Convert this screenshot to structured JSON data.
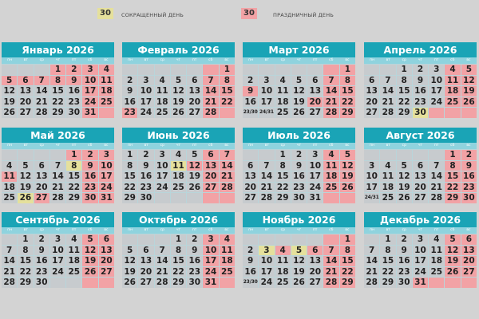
{
  "legend": {
    "short": {
      "sample": "30",
      "label": "СОКРАЩЕННЫЙ ДЕНЬ",
      "color": "#e5e09c"
    },
    "holiday": {
      "sample": "30",
      "label": "ПРАЗДНИЧНЫЙ ДЕНЬ",
      "color": "#f2a2a5"
    }
  },
  "weekdays": [
    "пн",
    "вт",
    "ср",
    "чт",
    "пт",
    "сб",
    "вс"
  ],
  "colors": {
    "header": "#1aa4b6",
    "weekday_row": "#8fd3de",
    "day": "#c7cbce",
    "holiday": "#f2a2a5",
    "short": "#e5e09c"
  },
  "marks_legend": {
    ".": "workday",
    "h": "holiday",
    "s": "short"
  },
  "months": [
    {
      "title": "Январь 2026",
      "weeks": [
        [
          "",
          "",
          "",
          "1",
          "2",
          "3",
          "4"
        ],
        [
          "5",
          "6",
          "7",
          "8",
          "9",
          "10",
          "11"
        ],
        [
          "12",
          "13",
          "14",
          "15",
          "16",
          "17",
          "18"
        ],
        [
          "19",
          "20",
          "21",
          "22",
          "23",
          "24",
          "25"
        ],
        [
          "26",
          "27",
          "28",
          "29",
          "30",
          "31",
          ""
        ]
      ],
      "marks": [
        "...hhhh",
        "hhhhhhh",
        ".....hh",
        ".....hh",
        ".....hh"
      ]
    },
    {
      "title": "Февраль 2026",
      "weeks": [
        [
          "",
          "",
          "",
          "",
          "",
          "",
          "1"
        ],
        [
          "2",
          "3",
          "4",
          "5",
          "6",
          "7",
          "8"
        ],
        [
          "9",
          "10",
          "11",
          "12",
          "13",
          "14",
          "15"
        ],
        [
          "16",
          "17",
          "18",
          "19",
          "20",
          "21",
          "22"
        ],
        [
          "23",
          "24",
          "25",
          "26",
          "27",
          "28",
          ""
        ]
      ],
      "marks": [
        ".....hh",
        ".....hh",
        ".....hh",
        ".....hh",
        "h....hh"
      ]
    },
    {
      "title": "Март 2026",
      "weeks": [
        [
          "",
          "",
          "",
          "",
          "",
          "",
          "1"
        ],
        [
          "2",
          "3",
          "4",
          "5",
          "6",
          "7",
          "8"
        ],
        [
          "9",
          "10",
          "11",
          "12",
          "13",
          "14",
          "15"
        ],
        [
          "16",
          "17",
          "18",
          "19",
          "20",
          "21",
          "22"
        ],
        [
          "23/30",
          "24/31",
          "25",
          "26",
          "27",
          "28",
          "29"
        ]
      ],
      "marks": [
        ".....hh",
        ".....hh",
        "h....hh",
        "....hhh",
        ".....hh"
      ]
    },
    {
      "title": "Апрель 2026",
      "weeks": [
        [
          "",
          "",
          "1",
          "2",
          "3",
          "4",
          "5"
        ],
        [
          "6",
          "7",
          "8",
          "9",
          "10",
          "11",
          "12"
        ],
        [
          "13",
          "14",
          "15",
          "16",
          "17",
          "18",
          "19"
        ],
        [
          "20",
          "21",
          "22",
          "23",
          "24",
          "25",
          "26"
        ],
        [
          "27",
          "28",
          "29",
          "30",
          "",
          "",
          ""
        ]
      ],
      "marks": [
        ".....hh",
        ".....hh",
        ".....hh",
        ".....hh",
        "...shhh"
      ]
    },
    {
      "title": "Май 2026",
      "weeks": [
        [
          "",
          "",
          "",
          "",
          "1",
          "2",
          "3"
        ],
        [
          "4",
          "5",
          "6",
          "7",
          "8",
          "9",
          "10"
        ],
        [
          "11",
          "12",
          "13",
          "14",
          "15",
          "16",
          "17"
        ],
        [
          "18",
          "19",
          "20",
          "21",
          "22",
          "23",
          "24"
        ],
        [
          "25",
          "26",
          "27",
          "28",
          "29",
          "30",
          "31"
        ]
      ],
      "marks": [
        "....hhh",
        "....shh",
        "h....hh",
        ".....hh",
        ".sh..hh"
      ]
    },
    {
      "title": "Июнь 2026",
      "weeks": [
        [
          "1",
          "2",
          "3",
          "4",
          "5",
          "6",
          "7"
        ],
        [
          "8",
          "9",
          "10",
          "11",
          "12",
          "13",
          "14"
        ],
        [
          "15",
          "16",
          "17",
          "18",
          "19",
          "20",
          "21"
        ],
        [
          "22",
          "23",
          "24",
          "25",
          "26",
          "27",
          "28"
        ],
        [
          "29",
          "30",
          "",
          "",
          "",
          "",
          ""
        ]
      ],
      "marks": [
        ".....hh",
        "...shhh",
        ".....hh",
        ".....hh",
        ".....hh"
      ]
    },
    {
      "title": "Июль 2026",
      "weeks": [
        [
          "",
          "",
          "1",
          "2",
          "3",
          "4",
          "5"
        ],
        [
          "6",
          "7",
          "8",
          "9",
          "10",
          "11",
          "12"
        ],
        [
          "13",
          "14",
          "15",
          "16",
          "17",
          "18",
          "19"
        ],
        [
          "20",
          "21",
          "22",
          "23",
          "24",
          "25",
          "26"
        ],
        [
          "27",
          "28",
          "29",
          "30",
          "31",
          "",
          ""
        ]
      ],
      "marks": [
        ".....hh",
        ".....hh",
        ".....hh",
        ".....hh",
        ".....hh"
      ]
    },
    {
      "title": "Август 2026",
      "weeks": [
        [
          "",
          "",
          "",
          "",
          "",
          "1",
          "2"
        ],
        [
          "3",
          "4",
          "5",
          "6",
          "7",
          "8",
          "9"
        ],
        [
          "10",
          "11",
          "12",
          "13",
          "14",
          "15",
          "16"
        ],
        [
          "17",
          "18",
          "19",
          "20",
          "21",
          "22",
          "23"
        ],
        [
          "24/31",
          "25",
          "26",
          "27",
          "28",
          "29",
          "30"
        ]
      ],
      "marks": [
        ".....hh",
        ".....hh",
        ".....hh",
        ".....hh",
        ".....hh"
      ]
    },
    {
      "title": "Сентябрь 2026",
      "weeks": [
        [
          "",
          "1",
          "2",
          "3",
          "4",
          "5",
          "6"
        ],
        [
          "7",
          "8",
          "9",
          "10",
          "11",
          "12",
          "13"
        ],
        [
          "14",
          "15",
          "16",
          "17",
          "18",
          "19",
          "20"
        ],
        [
          "21",
          "22",
          "23",
          "24",
          "25",
          "26",
          "27"
        ],
        [
          "28",
          "29",
          "30",
          "",
          "",
          "",
          ""
        ]
      ],
      "marks": [
        ".....hh",
        ".....hh",
        ".....hh",
        ".....hh",
        ".....hh"
      ]
    },
    {
      "title": "Октябрь 2026",
      "weeks": [
        [
          "",
          "",
          "",
          "1",
          "2",
          "3",
          "4"
        ],
        [
          "5",
          "6",
          "7",
          "8",
          "9",
          "10",
          "11"
        ],
        [
          "12",
          "13",
          "14",
          "15",
          "16",
          "17",
          "18"
        ],
        [
          "19",
          "20",
          "21",
          "22",
          "23",
          "24",
          "25"
        ],
        [
          "26",
          "27",
          "28",
          "29",
          "30",
          "31",
          ""
        ]
      ],
      "marks": [
        ".....hh",
        ".....hh",
        ".....hh",
        ".....hh",
        ".....hh"
      ]
    },
    {
      "title": "Ноябрь 2026",
      "weeks": [
        [
          "",
          "",
          "",
          "",
          "",
          "",
          "1"
        ],
        [
          "2",
          "3",
          "4",
          "5",
          "6",
          "7",
          "8"
        ],
        [
          "9",
          "10",
          "11",
          "12",
          "13",
          "14",
          "15"
        ],
        [
          "16",
          "17",
          "18",
          "19",
          "20",
          "21",
          "22"
        ],
        [
          "23/30",
          "24",
          "25",
          "26",
          "27",
          "28",
          "29"
        ]
      ],
      "marks": [
        ".....hh",
        ".shshhh",
        ".....hh",
        ".....hh",
        ".....hh"
      ]
    },
    {
      "title": "Декабрь 2026",
      "weeks": [
        [
          "",
          "1",
          "2",
          "3",
          "4",
          "5",
          "6"
        ],
        [
          "7",
          "8",
          "9",
          "10",
          "11",
          "12",
          "13"
        ],
        [
          "14",
          "15",
          "16",
          "17",
          "18",
          "19",
          "20"
        ],
        [
          "21",
          "22",
          "23",
          "24",
          "25",
          "26",
          "27"
        ],
        [
          "28",
          "29",
          "30",
          "31",
          "",
          "",
          ""
        ]
      ],
      "marks": [
        ".....hh",
        ".....hh",
        ".....hh",
        ".....hh",
        "...hhhh"
      ]
    }
  ]
}
